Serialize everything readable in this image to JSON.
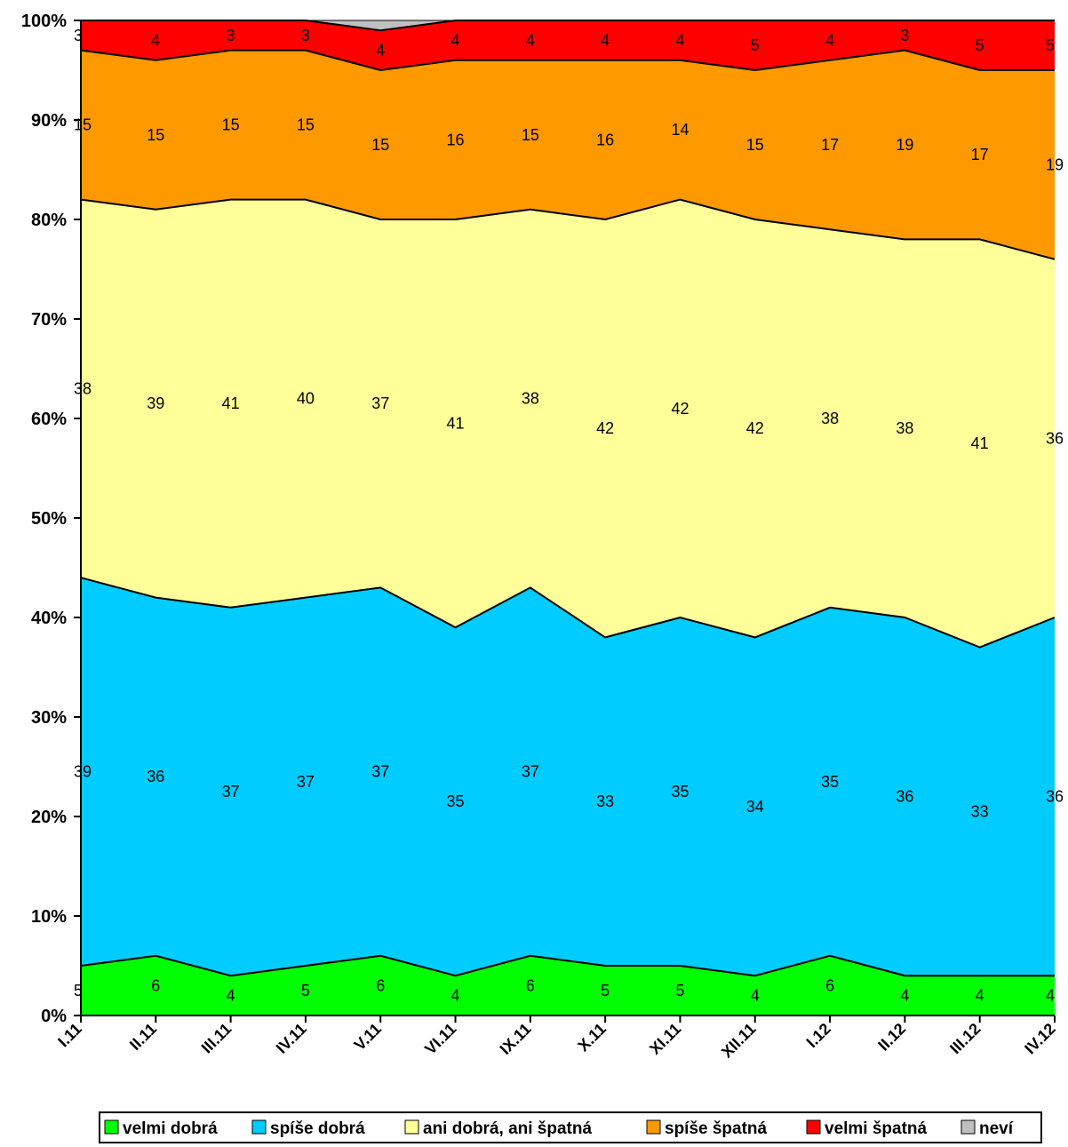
{
  "chart_data": {
    "type": "area",
    "stacked": "percent",
    "title": "",
    "xlabel": "",
    "ylabel": "",
    "ylim": [
      0,
      100
    ],
    "yticks": [
      "0%",
      "10%",
      "20%",
      "30%",
      "40%",
      "50%",
      "60%",
      "70%",
      "80%",
      "90%",
      "100%"
    ],
    "categories": [
      "I.11",
      "II.11",
      "III.11",
      "IV.11",
      "V.11",
      "VI.11",
      "IX.11",
      "X.11",
      "XI.11",
      "XII.11",
      "I.12",
      "II.12",
      "III.12",
      "IV.12"
    ],
    "series": [
      {
        "name": "velmi dobrá",
        "color": "#00ff00",
        "values": [
          5,
          6,
          4,
          5,
          6,
          4,
          6,
          5,
          5,
          4,
          6,
          4,
          4,
          4
        ]
      },
      {
        "name": "spíše dobrá",
        "color": "#00ccff",
        "values": [
          39,
          36,
          37,
          37,
          37,
          35,
          37,
          33,
          35,
          34,
          35,
          36,
          33,
          36
        ]
      },
      {
        "name": "ani dobrá, ani špatná",
        "color": "#ffff99",
        "values": [
          38,
          39,
          41,
          40,
          37,
          41,
          38,
          42,
          42,
          42,
          38,
          38,
          41,
          36
        ]
      },
      {
        "name": "spíše špatná",
        "color": "#ff9900",
        "values": [
          15,
          15,
          15,
          15,
          15,
          16,
          15,
          16,
          14,
          15,
          17,
          19,
          17,
          19
        ]
      },
      {
        "name": "velmi špatná",
        "color": "#ff0000",
        "values": [
          3,
          4,
          3,
          3,
          4,
          4,
          4,
          4,
          4,
          5,
          4,
          3,
          5,
          5
        ]
      },
      {
        "name": "neví",
        "color": "#c0c0c0",
        "values": [
          0,
          0,
          0,
          0,
          1,
          0,
          0,
          0,
          0,
          0,
          0,
          0,
          0,
          0
        ]
      }
    ],
    "legend_position": "bottom",
    "grid": false
  }
}
